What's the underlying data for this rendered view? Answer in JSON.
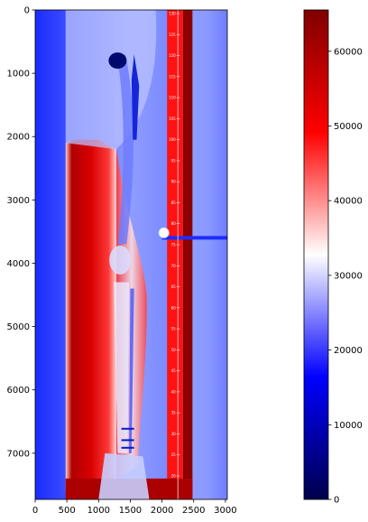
{
  "chart_data": {
    "type": "heatmap",
    "title": "",
    "xlabel": "",
    "ylabel": "",
    "xlim": [
      0,
      3030
    ],
    "ylim": [
      7730,
      0
    ],
    "x_ticks": [
      0,
      500,
      1000,
      1500,
      2000,
      2500,
      3000
    ],
    "y_ticks": [
      0,
      1000,
      2000,
      3000,
      4000,
      5000,
      6000,
      7000
    ],
    "colormap": "seismic",
    "colorbar": {
      "min": 0,
      "max": 65535,
      "ticks": [
        0,
        10000,
        20000,
        30000,
        40000,
        50000,
        60000
      ],
      "colors": [
        "#00004c",
        "#0000ff",
        "#ffffff",
        "#ff0000",
        "#800000"
      ]
    },
    "ruler_marks": [
      "130",
      "125",
      "120",
      "115",
      "110",
      "105",
      "100",
      "95",
      "90",
      "85",
      "80",
      "75",
      "70",
      "65",
      "60",
      "55",
      "50",
      "45",
      "40",
      "35",
      "30",
      "25",
      "20"
    ],
    "regions": [
      {
        "label": "background",
        "x": [
          0,
          3030
        ],
        "y": [
          0,
          7730
        ],
        "level": 18000
      },
      {
        "label": "soft-tissue",
        "x": [
          480,
          1280
        ],
        "y": [
          2050,
          7600
        ],
        "level": 62000
      },
      {
        "label": "right-band",
        "x": [
          2330,
          2480
        ],
        "y": [
          0,
          7730
        ],
        "level": 64000
      },
      {
        "label": "bottom-band",
        "x": [
          480,
          2480
        ],
        "y": [
          7400,
          7730
        ],
        "level": 60000
      },
      {
        "label": "femur",
        "x": [
          1320,
          1560
        ],
        "y": [
          700,
          3600
        ],
        "level": 8000
      },
      {
        "label": "tibia",
        "x": [
          1240,
          1480
        ],
        "y": [
          4300,
          7000
        ],
        "level": 18000
      }
    ]
  }
}
